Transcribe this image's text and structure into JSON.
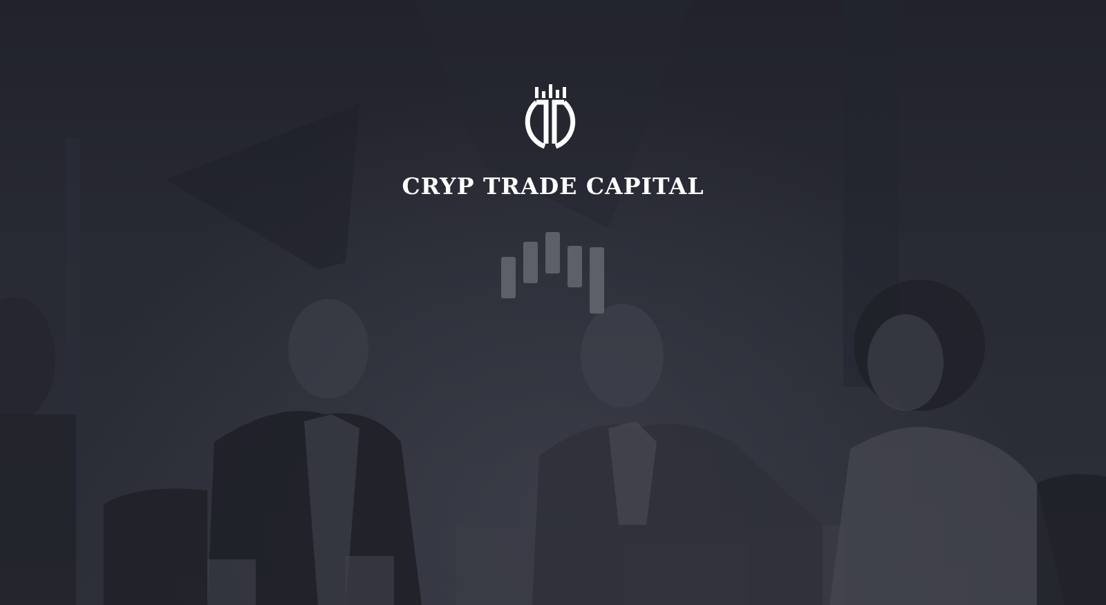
{
  "brand": {
    "name": "CRYP TRADE CAPITAL",
    "logo_icon": "cryp-trade-capital-logo-icon"
  },
  "loader": {
    "icon": "candlestick-loading-icon"
  },
  "background": {
    "description_icon": "office-meeting-background-image"
  },
  "colors": {
    "background": "#2a2c36",
    "logo": "#ffffff",
    "title": "#ffffff",
    "loader_bar": "#5d5f69"
  }
}
